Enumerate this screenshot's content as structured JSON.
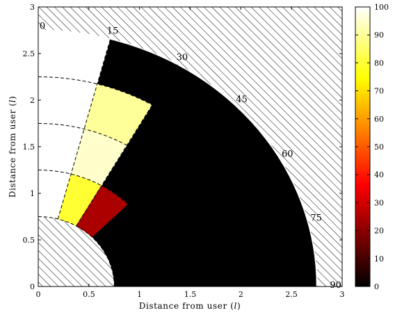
{
  "chart_data": {
    "type": "heatmap",
    "coordinate_system": "polar-quadrant",
    "xlabel": "Distance from user",
    "ylabel": "Distance from user",
    "axis_unit_symbol": "l",
    "xlim": [
      0,
      3
    ],
    "ylim": [
      0,
      3
    ],
    "x_ticks": [
      0,
      0.5,
      1,
      1.5,
      2,
      2.5,
      3
    ],
    "y_ticks": [
      0,
      0.5,
      1,
      1.5,
      2,
      2.5,
      3
    ],
    "x_tick_labels": [
      "0",
      "0.5",
      "1",
      "1.5",
      "2",
      "2.5",
      "3"
    ],
    "y_tick_labels": [
      "0",
      "0.5",
      "1",
      "1.5",
      "2",
      "2.5",
      "3"
    ],
    "inner_radius": 0.75,
    "outer_radius": 2.75,
    "angle_labels": [
      {
        "text": "0",
        "deg": 0
      },
      {
        "text": "15",
        "deg": 15
      },
      {
        "text": "30",
        "deg": 30
      },
      {
        "text": "45",
        "deg": 45
      },
      {
        "text": "60",
        "deg": 60
      },
      {
        "text": "75",
        "deg": 75
      },
      {
        "text": "90",
        "deg": 90
      }
    ],
    "colorbar": {
      "colormap": "hot",
      "min": 0,
      "max": 100,
      "ticks": [
        0,
        10,
        20,
        30,
        40,
        50,
        60,
        70,
        80,
        90,
        100
      ],
      "tick_labels": [
        "0",
        "10",
        "20",
        "30",
        "40",
        "50",
        "60",
        "70",
        "80",
        "90",
        "100"
      ]
    },
    "background_value": 0,
    "cells": [
      {
        "r0": 0.75,
        "r1": 1.25,
        "a0": 0,
        "a1": 15,
        "value": 100
      },
      {
        "r0": 0.75,
        "r1": 1.25,
        "a0": 15,
        "a1": 30,
        "value": 80
      },
      {
        "r0": 0.75,
        "r1": 1.25,
        "a0": 30,
        "a1": 45,
        "value": 25
      },
      {
        "r0": 1.25,
        "r1": 1.75,
        "a0": 0,
        "a1": 15,
        "value": 100
      },
      {
        "r0": 1.25,
        "r1": 1.75,
        "a0": 15,
        "a1": 30,
        "value": 95
      },
      {
        "r0": 1.75,
        "r1": 2.25,
        "a0": 0,
        "a1": 15,
        "value": 100
      },
      {
        "r0": 1.75,
        "r1": 2.25,
        "a0": 15,
        "a1": 30,
        "value": 90
      },
      {
        "r0": 2.25,
        "r1": 2.75,
        "a0": 0,
        "a1": 15,
        "value": 100
      }
    ],
    "dashed_arcs_radii": [
      0.75,
      1.25,
      1.75,
      2.25,
      2.75
    ],
    "dashed_rays_deg": [
      15,
      30
    ]
  }
}
